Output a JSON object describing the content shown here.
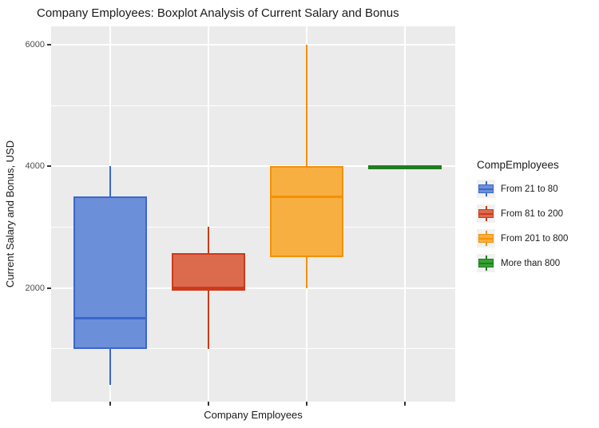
{
  "title": "Company Employees: Boxplot Analysis of Current Salary and Bonus",
  "chart_data": {
    "type": "boxplot",
    "title": "Company Employees: Boxplot Analysis of Current Salary and Bonus",
    "xlabel": "Company Employees",
    "ylabel": "Current Salary and Bonus, USD",
    "y_ticks": [
      2000,
      4000,
      6000
    ],
    "y_minor_ticks": [
      1000,
      3000,
      5000
    ],
    "ylim": [
      130,
      6300
    ],
    "grid": "on",
    "panel_background": "#EBEBEB",
    "gridline_color": "#FFFFFF",
    "legend_title": "CompEmployees",
    "legend_position": "right",
    "groups": [
      {
        "label": "From 21 to 80",
        "fill": "#6C8FD9",
        "stroke": "#3A67CC",
        "min": 400,
        "q1": 1000,
        "median": 1500,
        "q3": 3500,
        "max": 4000
      },
      {
        "label": "From 81 to 200",
        "fill": "#DC6B4E",
        "stroke": "#CC3A1B",
        "min": 1000,
        "q1": 1950,
        "median": 2000,
        "q3": 2575,
        "max": 3000
      },
      {
        "label": "From 201 to 800",
        "fill": "#F8AF41",
        "stroke": "#F39106",
        "min": 2000,
        "q1": 2500,
        "median": 3500,
        "q3": 4000,
        "max": 6000
      },
      {
        "label": "More than 800",
        "fill": "#35A132",
        "stroke": "#1F7D1F",
        "min": 4000,
        "q1": 4000,
        "median": 4000,
        "q3": 4000,
        "max": 4000
      }
    ]
  }
}
